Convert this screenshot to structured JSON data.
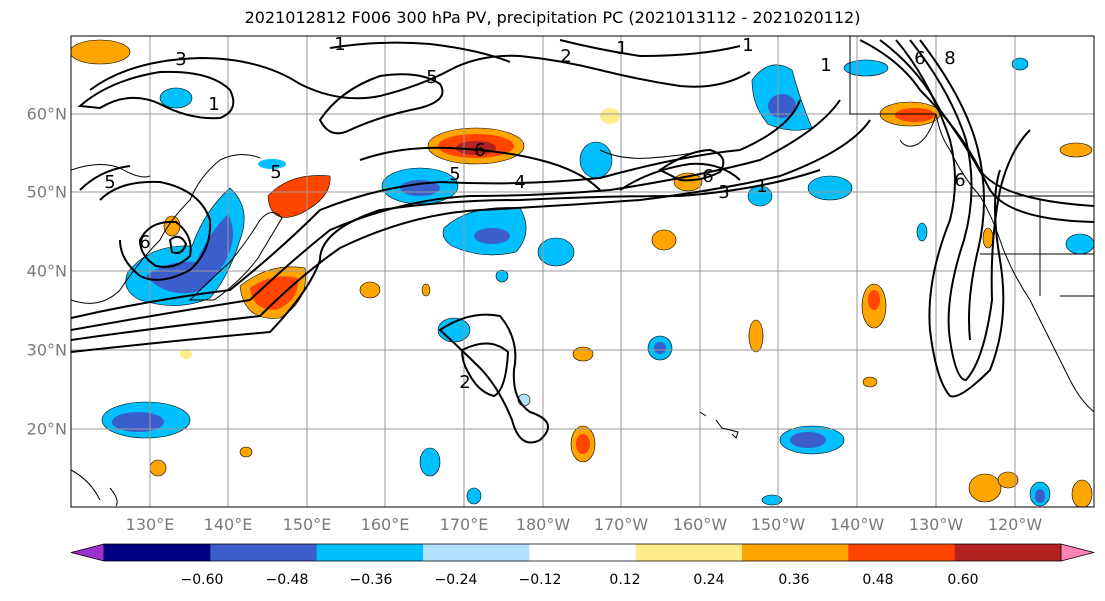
{
  "title": "2021012812 F006 300 hPa PV, precipitation PC (2021013112 - 2021020112)",
  "lat_labels": [
    "60°N",
    "50°N",
    "40°N",
    "30°N",
    "20°N"
  ],
  "lon_labels": [
    "130°E",
    "140°E",
    "150°E",
    "160°E",
    "170°E",
    "180°W",
    "170°W",
    "160°W",
    "150°W",
    "140°W",
    "130°W",
    "120°W"
  ],
  "colorbar": {
    "ticks": [
      "−0.60",
      "−0.48",
      "−0.36",
      "−0.24",
      "−0.12",
      "0.12",
      "0.24",
      "0.36",
      "0.48",
      "0.60"
    ],
    "colors": [
      "#9932cc",
      "#000080",
      "#3a5fcd",
      "#00bfff",
      "#b0e2ff",
      "#ffffff",
      "#ffec8b",
      "#ffa500",
      "#ff4500",
      "#b22222",
      "#ff83b4"
    ]
  },
  "contour_labels": [
    "3",
    "1",
    "1",
    "1",
    "5",
    "2",
    "1",
    "5",
    "6",
    "6",
    "5",
    "5",
    "4",
    "6",
    "3",
    "1",
    "6",
    "8",
    "2",
    "6",
    "1"
  ]
}
